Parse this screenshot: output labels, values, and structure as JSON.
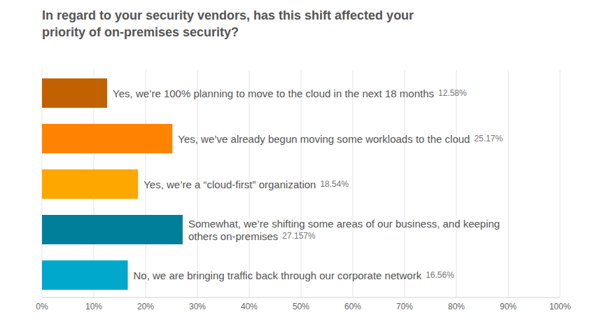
{
  "chart_data": {
    "type": "bar",
    "title": "In regard to your security vendors, has this shift affected your priority of on-premises security?",
    "orientation": "horizontal",
    "categories": [
      "Yes, we’re 100% planning to move to the cloud in the next 18 months",
      "Yes, we’ve already begun moving some workloads to the cloud",
      "Yes, we’re a “cloud-first” organization",
      "Somewhat, we’re shifting some areas of our business, and keeping others on-premises",
      "No, we are bringing traffic back through our corporate network"
    ],
    "values": [
      12.58,
      25.17,
      18.54,
      27.157,
      16.56
    ],
    "value_labels": [
      "12.58%",
      "25.17%",
      "18.54%",
      "27.157%",
      "16.56%"
    ],
    "colors": [
      "#c26100",
      "#ff8300",
      "#ffa600",
      "#007f9b",
      "#00a8cc"
    ],
    "xlim": [
      0,
      100
    ],
    "xticks": [
      {
        "value": 0,
        "label": "0%"
      },
      {
        "value": 10,
        "label": "10%"
      },
      {
        "value": 20,
        "label": "20%"
      },
      {
        "value": 30,
        "label": "30%"
      },
      {
        "value": 40,
        "label": "40%"
      },
      {
        "value": 50,
        "label": "50%"
      },
      {
        "value": 60,
        "label": "60%"
      },
      {
        "value": 70,
        "label": "70%"
      },
      {
        "value": 80,
        "label": "80%"
      },
      {
        "value": 90,
        "label": "90%"
      },
      {
        "value": 100,
        "label": "100%"
      }
    ],
    "grid": true,
    "data_labels": true,
    "tick_labels": "x"
  }
}
